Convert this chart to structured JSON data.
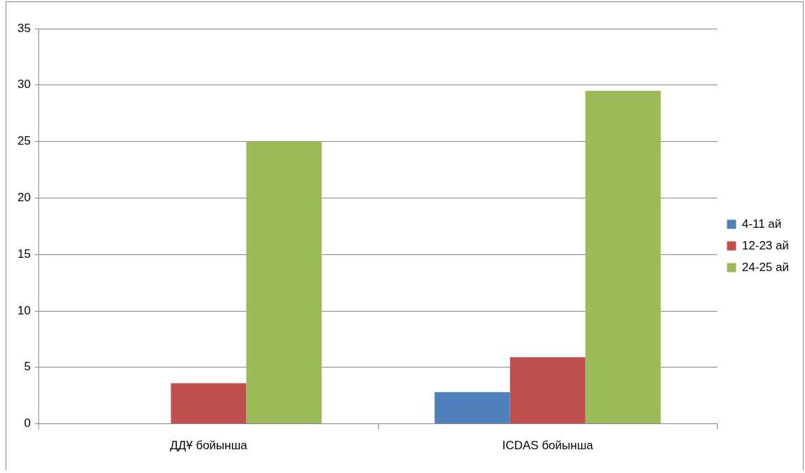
{
  "chart_data": {
    "type": "bar",
    "categories": [
      "ДДҰ бойынша",
      "ICDAS бойынша"
    ],
    "series": [
      {
        "name": "4-11 ай",
        "color": "#4f81bd",
        "values": [
          0,
          2.8
        ]
      },
      {
        "name": "12-23 ай",
        "color": "#c0504d",
        "values": [
          3.6,
          5.9
        ]
      },
      {
        "name": "24-25 ай",
        "color": "#9bbb59",
        "values": [
          25,
          29.5
        ]
      }
    ],
    "ylim": [
      0,
      35
    ],
    "yticks": [
      0,
      5,
      10,
      15,
      20,
      25,
      30,
      35
    ],
    "grid": "y",
    "legend": "right"
  }
}
